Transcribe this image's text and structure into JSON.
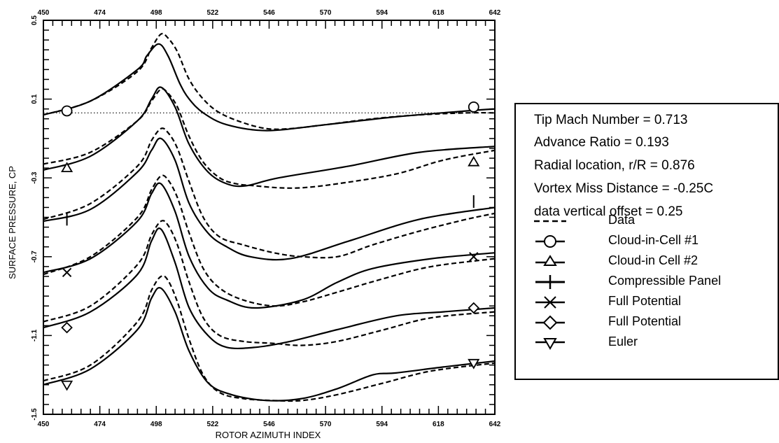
{
  "chart_data": {
    "type": "line",
    "xlabel": "ROTOR AZIMUTH INDEX",
    "ylabel": "SURFACE PRESSURE, CP",
    "xlim": [
      450,
      642
    ],
    "ylim": [
      -1.5,
      0.5
    ],
    "x_ticks": [
      "450",
      "474",
      "498",
      "522",
      "546",
      "570",
      "594",
      "618",
      "642"
    ],
    "y_ticks": [
      "-1.5",
      "-1.1",
      "-0.7",
      "-0.3",
      "0.1",
      "0.5"
    ],
    "reference_line_y": 0.03,
    "grid": false,
    "legend_placement": "right",
    "series": [
      {
        "name": "Data",
        "style": "dashed",
        "x": [
          450,
          470,
          490,
          496,
          500,
          503,
          507,
          512,
          518,
          525,
          535,
          545,
          555,
          570,
          590,
          610,
          630,
          642
        ],
        "y": [
          0.02,
          0.09,
          0.24,
          0.36,
          0.43,
          0.41,
          0.34,
          0.2,
          0.1,
          0.03,
          -0.02,
          -0.05,
          -0.05,
          -0.03,
          0.0,
          0.02,
          0.03,
          0.03
        ]
      },
      {
        "name": "Cloud-in-Cell #1",
        "style": "solid",
        "marker": "circle",
        "x": [
          450,
          470,
          490,
          494,
          499,
          503,
          508,
          512,
          518,
          528,
          545,
          570,
          600,
          630,
          642
        ],
        "y": [
          0.02,
          0.09,
          0.25,
          0.32,
          0.38,
          0.32,
          0.18,
          0.1,
          0.03,
          -0.03,
          -0.06,
          -0.03,
          0.01,
          0.04,
          0.05
        ]
      },
      {
        "name": "Cloud-in Cell #2",
        "style": "solid",
        "marker": "triangle-up",
        "x": [
          450,
          470,
          490,
          496,
          500,
          506,
          512,
          520,
          528,
          536,
          550,
          580,
          610,
          642
        ],
        "y": [
          -0.26,
          -0.19,
          -0.01,
          0.1,
          0.16,
          0.06,
          -0.13,
          -0.27,
          -0.33,
          -0.34,
          -0.3,
          -0.24,
          -0.17,
          -0.14
        ]
      },
      {
        "name": "Compressible Panel",
        "style": "solid",
        "marker": "plus",
        "x": [
          450,
          470,
          490,
          496,
          500,
          506,
          512,
          520,
          528,
          538,
          555,
          580,
          610,
          642
        ],
        "y": [
          -0.52,
          -0.46,
          -0.27,
          -0.16,
          -0.1,
          -0.21,
          -0.43,
          -0.58,
          -0.65,
          -0.7,
          -0.71,
          -0.62,
          -0.51,
          -0.45
        ]
      },
      {
        "name": "Full Potential",
        "style": "solid",
        "marker": "x",
        "x": [
          450,
          470,
          490,
          496,
          500,
          506,
          512,
          520,
          528,
          540,
          560,
          575,
          590,
          615,
          642
        ],
        "y": [
          -0.78,
          -0.71,
          -0.52,
          -0.38,
          -0.33,
          -0.47,
          -0.7,
          -0.86,
          -0.92,
          -0.96,
          -0.92,
          -0.83,
          -0.76,
          -0.71,
          -0.68
        ]
      },
      {
        "name": "Full Potential",
        "style": "solid",
        "marker": "diamond",
        "x": [
          450,
          470,
          490,
          496,
          500,
          506,
          512,
          520,
          528,
          540,
          555,
          575,
          600,
          620,
          642
        ],
        "y": [
          -1.06,
          -0.98,
          -0.79,
          -0.62,
          -0.56,
          -0.73,
          -0.96,
          -1.1,
          -1.16,
          -1.16,
          -1.13,
          -1.07,
          -1.0,
          -0.98,
          -0.96
        ]
      },
      {
        "name": "Euler",
        "style": "solid",
        "marker": "triangle-down",
        "x": [
          450,
          470,
          490,
          496,
          500,
          506,
          512,
          520,
          530,
          545,
          560,
          575,
          590,
          600,
          620,
          642
        ],
        "y": [
          -1.35,
          -1.27,
          -1.07,
          -0.91,
          -0.86,
          -0.98,
          -1.18,
          -1.34,
          -1.4,
          -1.43,
          -1.42,
          -1.37,
          -1.3,
          -1.29,
          -1.26,
          -1.23
        ]
      }
    ],
    "data_overlays": [
      {
        "x": [
          450,
          470,
          490,
          496,
          500,
          503,
          507,
          512,
          518,
          525,
          532,
          540,
          550,
          560,
          575,
          600,
          620,
          642
        ],
        "y": [
          -0.23,
          -0.17,
          -0.01,
          0.09,
          0.15,
          0.13,
          0.06,
          -0.09,
          -0.22,
          -0.3,
          -0.33,
          -0.34,
          -0.35,
          -0.35,
          -0.33,
          -0.28,
          -0.21,
          -0.16
        ]
      },
      {
        "x": [
          450,
          470,
          490,
          496,
          500,
          503,
          507,
          512,
          518,
          525,
          535,
          548,
          560,
          575,
          590,
          610,
          630,
          642
        ],
        "y": [
          -0.51,
          -0.43,
          -0.24,
          -0.11,
          -0.05,
          -0.07,
          -0.15,
          -0.32,
          -0.5,
          -0.6,
          -0.64,
          -0.68,
          -0.7,
          -0.7,
          -0.64,
          -0.57,
          -0.51,
          -0.48
        ]
      },
      {
        "x": [
          450,
          470,
          490,
          496,
          500,
          503,
          507,
          512,
          518,
          525,
          535,
          548,
          560,
          575,
          595,
          615,
          642
        ],
        "y": [
          -0.79,
          -0.7,
          -0.5,
          -0.36,
          -0.29,
          -0.31,
          -0.4,
          -0.58,
          -0.76,
          -0.86,
          -0.92,
          -0.95,
          -0.93,
          -0.88,
          -0.81,
          -0.75,
          -0.71
        ]
      },
      {
        "x": [
          450,
          470,
          490,
          496,
          500,
          503,
          507,
          512,
          518,
          525,
          535,
          548,
          560,
          575,
          595,
          615,
          642
        ],
        "y": [
          -1.03,
          -0.95,
          -0.74,
          -0.59,
          -0.52,
          -0.54,
          -0.64,
          -0.83,
          -1.01,
          -1.1,
          -1.13,
          -1.14,
          -1.15,
          -1.13,
          -1.07,
          -1.01,
          -0.98
        ]
      },
      {
        "x": [
          450,
          470,
          490,
          496,
          500,
          503,
          507,
          512,
          518,
          525,
          535,
          548,
          560,
          575,
          595,
          615,
          642
        ],
        "y": [
          -1.33,
          -1.25,
          -1.03,
          -0.87,
          -0.8,
          -0.82,
          -0.93,
          -1.12,
          -1.3,
          -1.39,
          -1.42,
          -1.43,
          -1.43,
          -1.4,
          -1.34,
          -1.28,
          -1.24
        ]
      }
    ],
    "marker_positions": {
      "circle": [
        [
          460,
          0.04
        ],
        [
          633,
          0.06
        ]
      ],
      "triangle-up": [
        [
          460,
          -0.25
        ],
        [
          633,
          -0.22
        ]
      ],
      "plus": [
        [
          460,
          -0.51
        ],
        [
          633,
          -0.42
        ]
      ],
      "x": [
        [
          460,
          -0.78
        ],
        [
          633,
          -0.7
        ]
      ],
      "diamond": [
        [
          460,
          -1.06
        ],
        [
          633,
          -0.96
        ]
      ],
      "triangle-down": [
        [
          460,
          -1.35
        ],
        [
          633,
          -1.24
        ]
      ]
    }
  },
  "legend": {
    "info_lines": [
      "Tip Mach Number = 0.713",
      "Advance Ratio = 0.193",
      "Radial location, r/R = 0.876",
      "Vortex Miss Distance = -0.25C",
      "data vertical offset = 0.25"
    ],
    "items": [
      {
        "label": "Data",
        "symbol": "dashed"
      },
      {
        "label": "Cloud-in-Cell #1",
        "symbol": "circle"
      },
      {
        "label": "Cloud-in Cell #2",
        "symbol": "triangle-up"
      },
      {
        "label": "Compressible Panel",
        "symbol": "plus"
      },
      {
        "label": "Full Potential",
        "symbol": "x"
      },
      {
        "label": "Full Potential",
        "symbol": "diamond"
      },
      {
        "label": "Euler",
        "symbol": "triangle-down"
      }
    ]
  },
  "colors": {
    "line": "#000000",
    "background": "#ffffff"
  }
}
